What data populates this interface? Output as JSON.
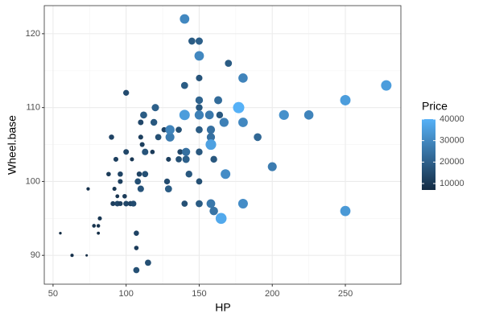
{
  "chart_data": {
    "type": "scatter",
    "xlabel": "HP",
    "ylabel": "Wheel.base",
    "legend_title": "Price",
    "x": [
      55,
      63,
      73,
      74,
      78,
      81,
      81,
      82,
      88,
      90,
      92,
      93,
      94,
      91,
      94,
      96,
      96,
      96,
      100,
      100,
      100,
      99,
      103,
      104,
      105,
      107,
      107,
      107,
      109,
      108,
      110,
      110,
      110,
      111,
      112,
      113,
      113,
      115,
      118,
      119,
      120,
      122,
      126,
      128,
      129,
      130,
      130,
      129,
      136,
      136,
      137,
      140,
      140,
      140,
      140,
      141,
      143,
      141,
      145,
      150,
      150,
      150,
      150,
      150,
      150,
      150,
      150,
      150,
      150,
      158,
      158,
      157,
      158,
      158,
      160,
      160,
      163,
      164,
      165,
      167,
      168,
      170,
      177,
      180,
      180,
      180,
      190,
      200,
      208,
      225,
      250,
      250,
      278
    ],
    "y": [
      93,
      90,
      90,
      99,
      94,
      94,
      93,
      95,
      101,
      106,
      99,
      103,
      98,
      97,
      97,
      100,
      97,
      101,
      97,
      104,
      112,
      98,
      97,
      103,
      97,
      93,
      91,
      88,
      101,
      100,
      99,
      106,
      108,
      105,
      109,
      104,
      101,
      89,
      104,
      108,
      110,
      106,
      107,
      100,
      99,
      106,
      107,
      103,
      103,
      107,
      104,
      109,
      113,
      122,
      97,
      103,
      101,
      104,
      119,
      119,
      117,
      114,
      111,
      110,
      109,
      107,
      104,
      100,
      97,
      97,
      106,
      109,
      107,
      105,
      103,
      96,
      111,
      109,
      95,
      108,
      101,
      116,
      110,
      114,
      108,
      97,
      106,
      102,
      109,
      109,
      111,
      96,
      113
    ],
    "price": [
      7400,
      8400,
      7000,
      8600,
      9200,
      9000,
      8000,
      10000,
      11000,
      13000,
      10000,
      12000,
      9500,
      12000,
      14000,
      12000,
      12000,
      13000,
      14000,
      14000,
      15000,
      11000,
      13000,
      10000,
      15000,
      13000,
      11000,
      16000,
      13000,
      16000,
      17000,
      12000,
      14000,
      12000,
      19000,
      17000,
      16000,
      16000,
      11000,
      18000,
      20000,
      16000,
      13000,
      15000,
      19000,
      27000,
      29000,
      12000,
      16000,
      16000,
      14000,
      35000,
      19000,
      30000,
      16000,
      20000,
      18000,
      24000,
      19000,
      20000,
      30000,
      17000,
      21000,
      18000,
      28000,
      19000,
      18000,
      16000,
      19000,
      26000,
      24000,
      26000,
      24000,
      36000,
      18000,
      25000,
      23000,
      18000,
      38000,
      28000,
      31000,
      19000,
      40000,
      29000,
      30000,
      31000,
      22000,
      27000,
      32000,
      29000,
      35000,
      34000,
      35000
    ],
    "colors": [
      "#132B43",
      "#56B1F7"
    ],
    "xlim": [
      44,
      288
    ],
    "xticks": [
      50,
      100,
      150,
      200,
      250
    ],
    "ylim": [
      86.1,
      123.8
    ],
    "yticks": [
      90,
      100,
      110,
      120
    ],
    "legend_ticks": [
      10000,
      20000,
      30000,
      40000
    ],
    "grid": true
  }
}
